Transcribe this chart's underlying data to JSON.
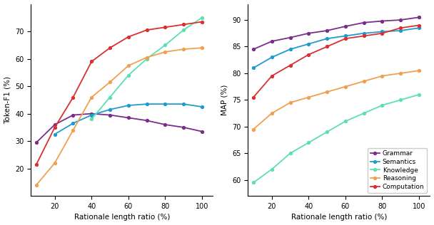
{
  "x": [
    10,
    20,
    30,
    40,
    50,
    60,
    70,
    80,
    90,
    100
  ],
  "left_grammar": [
    29.5,
    36.0,
    39.5,
    40.0,
    39.5,
    38.5,
    37.5,
    36.0,
    35.0,
    33.5
  ],
  "left_semantics": [
    null,
    32.5,
    36.5,
    39.5,
    41.5,
    43.0,
    43.5,
    43.5,
    43.5,
    42.5
  ],
  "left_knowledge": [
    null,
    null,
    null,
    38.0,
    46.0,
    54.0,
    60.0,
    65.0,
    70.5,
    75.0
  ],
  "left_reasoning": [
    14.0,
    22.0,
    34.0,
    46.0,
    51.5,
    57.5,
    60.5,
    62.5,
    63.5,
    64.0
  ],
  "left_computation": [
    21.5,
    35.0,
    46.0,
    59.0,
    64.0,
    68.0,
    70.5,
    71.5,
    72.5,
    73.5
  ],
  "right_grammar": [
    84.5,
    86.0,
    86.7,
    87.5,
    88.0,
    88.8,
    89.5,
    89.8,
    90.0,
    90.5
  ],
  "right_semantics": [
    81.0,
    83.0,
    84.5,
    85.5,
    86.5,
    87.0,
    87.5,
    87.8,
    88.0,
    88.5
  ],
  "right_knowledge": [
    59.5,
    62.0,
    65.0,
    67.0,
    69.0,
    71.0,
    72.5,
    74.0,
    75.0,
    76.0
  ],
  "right_reasoning": [
    69.5,
    72.5,
    74.5,
    75.5,
    76.5,
    77.5,
    78.5,
    79.5,
    80.0,
    80.5
  ],
  "right_computation": [
    75.5,
    79.5,
    81.5,
    83.5,
    85.0,
    86.5,
    87.0,
    87.5,
    88.5,
    89.0
  ],
  "color_grammar": "#7b2d8b",
  "color_semantics": "#1f9bcf",
  "color_knowledge": "#5de0b0",
  "color_reasoning": "#f0a050",
  "color_computation": "#d93030",
  "left_ylim": [
    10,
    80
  ],
  "left_yticks": [
    20,
    30,
    40,
    50,
    60,
    70
  ],
  "right_ylim": [
    57,
    93
  ],
  "right_yticks": [
    60,
    65,
    70,
    75,
    80,
    85,
    90
  ],
  "xticks": [
    20,
    40,
    60,
    80,
    100
  ],
  "xlabel": "Rationale length ratio (%)",
  "left_ylabel": "Token-F1 (%)",
  "right_ylabel": "MAP (%)",
  "legend_labels": [
    "Grammar",
    "Semantics",
    "Knowledge",
    "Reasoning",
    "Computation"
  ],
  "marker": "o",
  "markersize": 2.8,
  "linewidth": 1.3,
  "figsize": [
    6.08,
    3.16
  ],
  "dpi": 100,
  "tick_fontsize": 7,
  "label_fontsize": 7.5,
  "legend_fontsize": 6.5
}
